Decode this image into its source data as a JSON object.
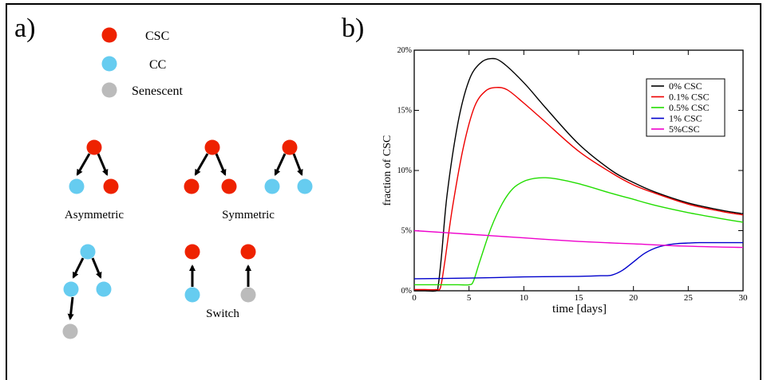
{
  "panel_a": {
    "label": "a)",
    "legend": [
      {
        "name": "CSC",
        "color": "#ee2200"
      },
      {
        "name": "CC",
        "color": "#66ccf0"
      },
      {
        "name": "Senescent",
        "color": "#bbbbbb"
      }
    ],
    "division_labels": {
      "asymmetric": "Asymmetric",
      "symmetric": "Symmetric",
      "switch": "Switch"
    }
  },
  "panel_b": {
    "label": "b)"
  },
  "chart_data": {
    "type": "line",
    "title": "",
    "xlabel": "time [days]",
    "ylabel": "fraction of CSC",
    "xlim": [
      0,
      30
    ],
    "ylim": [
      0,
      20
    ],
    "xticks": [
      0,
      5,
      10,
      15,
      20,
      25,
      30
    ],
    "yticks": [
      0,
      5,
      10,
      15,
      20
    ],
    "ytick_labels": [
      "0%",
      "5%",
      "10%",
      "15%",
      "20%"
    ],
    "legend_position": "top-right",
    "grid": false,
    "series": [
      {
        "name": "0% CSC",
        "color": "#000000",
        "x": [
          0,
          1,
          2,
          2.2,
          2.5,
          3,
          4,
          5,
          6,
          7,
          8,
          10,
          12,
          15,
          18,
          20,
          22,
          25,
          28,
          30
        ],
        "y": [
          0,
          0,
          0,
          0.5,
          3,
          8,
          14,
          17.5,
          18.9,
          19.3,
          19,
          17.3,
          15.2,
          12.2,
          10,
          9,
          8.2,
          7.3,
          6.7,
          6.4
        ]
      },
      {
        "name": "0.1% CSC",
        "color": "#ee0000",
        "x": [
          0,
          1,
          2,
          2.4,
          2.8,
          3.5,
          4.5,
          5.5,
          6.5,
          7.5,
          8.5,
          10,
          12,
          15,
          18,
          20,
          22,
          25,
          28,
          30
        ],
        "y": [
          0.1,
          0.1,
          0.1,
          0.3,
          2.5,
          7,
          12,
          15.3,
          16.6,
          16.9,
          16.7,
          15.6,
          14,
          11.6,
          9.8,
          8.8,
          8.1,
          7.2,
          6.6,
          6.3
        ]
      },
      {
        "name": "0.5% CSC",
        "color": "#22dd00",
        "x": [
          0,
          2,
          4,
          5,
          5.4,
          6,
          7,
          8,
          9,
          10,
          11,
          12,
          13,
          15,
          18,
          20,
          22,
          25,
          28,
          30
        ],
        "y": [
          0.5,
          0.5,
          0.5,
          0.5,
          0.8,
          2.5,
          5.2,
          7.2,
          8.5,
          9.1,
          9.35,
          9.4,
          9.3,
          8.9,
          8.1,
          7.6,
          7.1,
          6.5,
          6,
          5.7
        ]
      },
      {
        "name": "1% CSC",
        "color": "#0000cc",
        "x": [
          0,
          5,
          10,
          15,
          17,
          18,
          19,
          20,
          21,
          22,
          23,
          24,
          25,
          26,
          28,
          30
        ],
        "y": [
          1,
          1.05,
          1.15,
          1.2,
          1.25,
          1.3,
          1.7,
          2.4,
          3.1,
          3.55,
          3.8,
          3.92,
          3.97,
          4,
          4,
          4
        ]
      },
      {
        "name": "5%CSC",
        "color": "#ee00cc",
        "x": [
          0,
          5,
          10,
          15,
          20,
          25,
          30
        ],
        "y": [
          5,
          4.7,
          4.4,
          4.1,
          3.9,
          3.7,
          3.6
        ]
      }
    ]
  }
}
